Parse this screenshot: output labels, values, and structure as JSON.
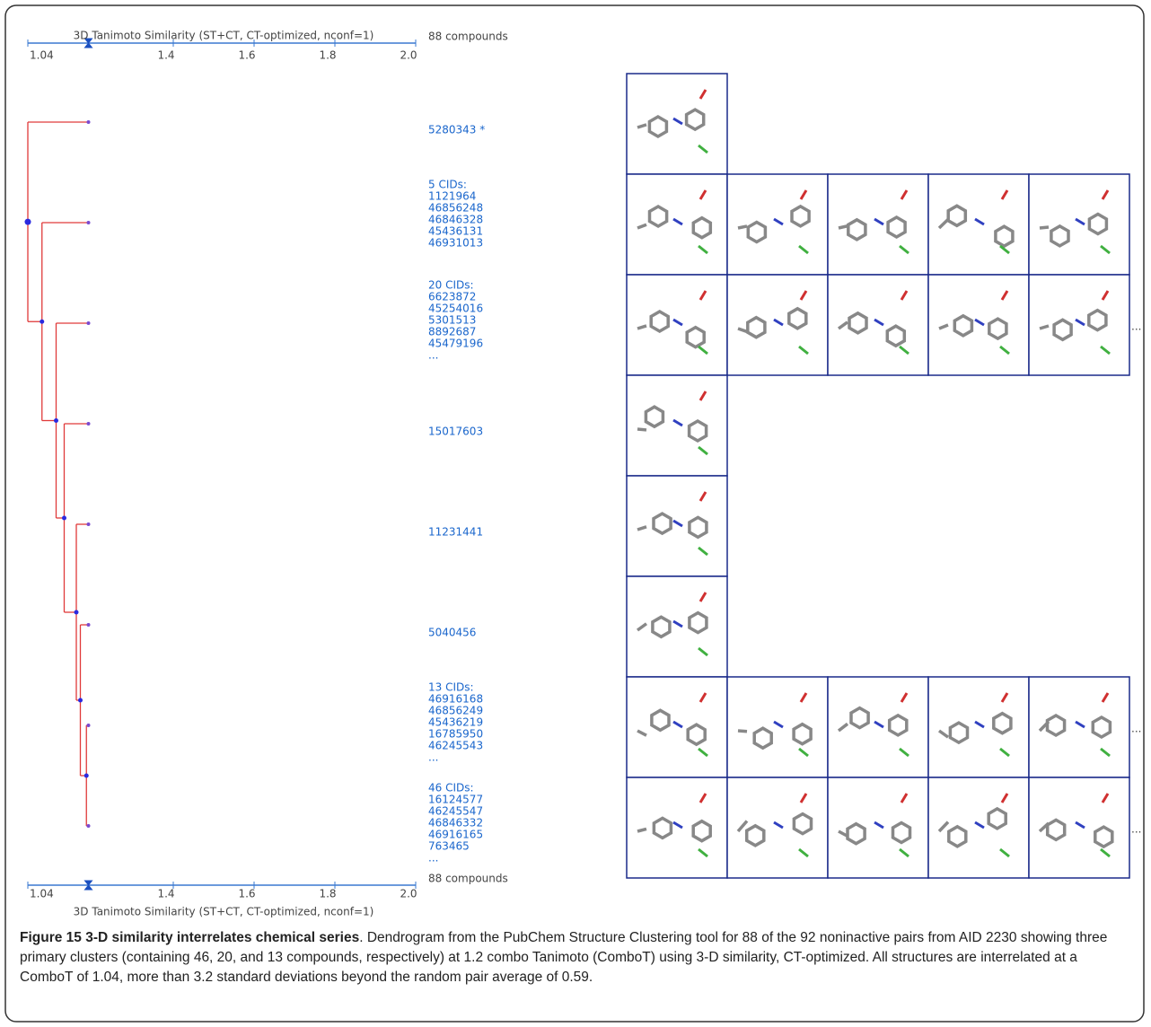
{
  "figure": {
    "axis_title": "3D Tanimoto Similarity (ST+CT, CT-optimized, nconf=1)",
    "compound_count": "88 compounds",
    "xlim": [
      1.04,
      2.0
    ],
    "xticks": [
      1.04,
      1.4,
      1.6,
      1.8,
      {
        "value": 2,
        "label": "2.0"
      }
    ],
    "cutoff": 1.19,
    "merge_heights": [
      1.04,
      1.075,
      1.11,
      1.13,
      1.16,
      1.17,
      1.185
    ],
    "leaves": [
      {
        "lines": [
          "5280343 *"
        ]
      },
      {
        "lines": [
          "5 CIDs:",
          "1121964",
          "46856248",
          "46846328",
          "45436131",
          "46931013"
        ]
      },
      {
        "lines": [
          "20 CIDs:",
          "6623872",
          "45254016",
          "5301513",
          "8892687",
          "45479196",
          "..."
        ]
      },
      {
        "lines": [
          "15017603"
        ]
      },
      {
        "lines": [
          "11231441"
        ]
      },
      {
        "lines": [
          "5040456"
        ]
      },
      {
        "lines": [
          "13 CIDs:",
          "46916168",
          "46856249",
          "45436219",
          "16785950",
          "46245543",
          "..."
        ]
      },
      {
        "lines": [
          "46 CIDs:",
          "16124577",
          "46245547",
          "46846332",
          "46916165",
          "763465",
          "..."
        ]
      }
    ],
    "more_label": "..."
  },
  "caption": {
    "title": "Figure 15 3-D similarity interrelates chemical series",
    "text": ". Dendrogram from the PubChem Structure Clustering tool for 88 of the 92 noninactive pairs from AID 2230 showing three primary clusters (containing 46, 20, and 13 compounds, respectively) at 1.2 combo Tanimoto (ComboT) using 3-D similarity, CT-optimized. All structures are interrelated at a ComboT of 1.04, more than 3.2 standard deviations beyond the random pair average of 0.59."
  }
}
